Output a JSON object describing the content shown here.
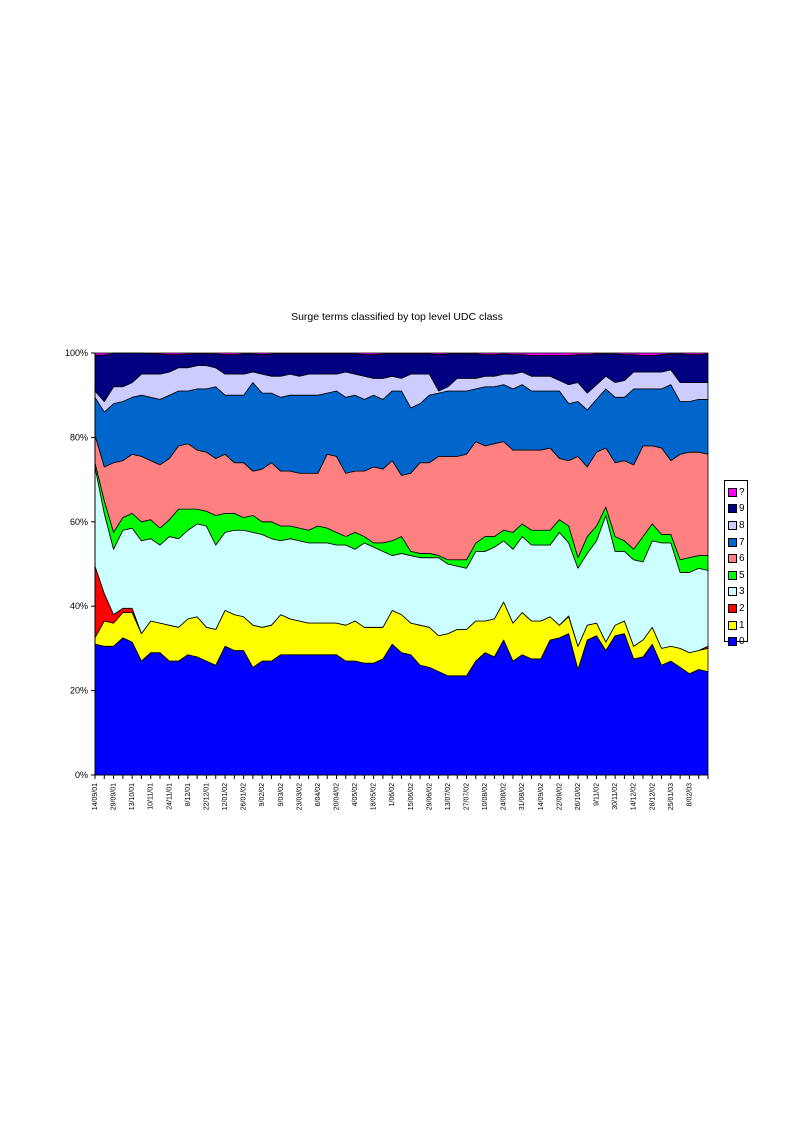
{
  "chart_data": {
    "type": "area",
    "stacked": "percent",
    "title": "Surge terms classified by top level UDC class",
    "xlabel": "",
    "ylabel": "",
    "ylim": [
      0,
      100
    ],
    "yticks": [
      "0%",
      "20%",
      "40%",
      "60%",
      "80%",
      "100%"
    ],
    "legend_position": "right",
    "x_tick_labels": [
      "14/09/01",
      "29/09/01",
      "13/10/01",
      "10/11/01",
      "24/11/01",
      "8/12/01",
      "22/12/01",
      "12/01/02",
      "26/01/02",
      "9/02/02",
      "9/03/02",
      "23/03/02",
      "6/04/02",
      "20/04/02",
      "4/05/02",
      "18/05/02",
      "1/06/02",
      "15/06/02",
      "29/06/02",
      "13/07/02",
      "27/07/02",
      "10/08/02",
      "24/08/02",
      "31/08/02",
      "14/09/02",
      "22/09/02",
      "26/10/02",
      "9/11/02",
      "30/11/02",
      "14/12/02",
      "28/12/02",
      "25/01/03",
      "8/02/03"
    ],
    "n_points": 67,
    "series_order_bottom_to_top": [
      "0",
      "1",
      "2",
      "3",
      "5",
      "6",
      "7",
      "8",
      "9",
      "?"
    ],
    "colors": {
      "0": "#0000ff",
      "1": "#ffff00",
      "2": "#ff0000",
      "3": "#ccffff",
      "5": "#00ff00",
      "6": "#ff8080",
      "7": "#0066cc",
      "8": "#ccccff",
      "9": "#000080",
      "?": "#ff00ff"
    },
    "cumulative": {
      "0": [
        31,
        30.5,
        30.5,
        32.5,
        31.5,
        27,
        29,
        29,
        27,
        27,
        28.5,
        28,
        27,
        26,
        30.5,
        29.5,
        29.5,
        25.5,
        27,
        27,
        28.5,
        28.5,
        28.5,
        28.5,
        28.5,
        28.5,
        28.5,
        27,
        27,
        26.5,
        26.5,
        27.5,
        31,
        29,
        28.5,
        26,
        25.5,
        24.5,
        23.5,
        23.5,
        23.5,
        27,
        29,
        28,
        32,
        27,
        28.5,
        27.5,
        27.5,
        32,
        32.5,
        33.5,
        25,
        32,
        33,
        29.5,
        33,
        33.5,
        27.5,
        28,
        31,
        26,
        27,
        25.5,
        24,
        25,
        24.5
      ],
      "1": [
        32.5,
        36.5,
        36,
        38.5,
        38.5,
        33.5,
        36.5,
        36,
        35.5,
        35,
        37,
        37.5,
        35,
        34.5,
        39,
        38,
        37.5,
        35.5,
        35,
        35.5,
        38,
        37,
        36.5,
        36,
        36,
        36,
        36,
        35.5,
        36.5,
        35,
        35,
        35,
        39,
        38,
        36,
        35.5,
        35,
        33,
        33.5,
        34.5,
        34.5,
        36.5,
        36.5,
        37,
        41,
        36,
        38.5,
        36.5,
        36.5,
        37.5,
        35.5,
        37.5,
        30.5,
        35.5,
        36,
        31.5,
        35.5,
        36.5,
        30.5,
        32,
        35,
        30,
        30.5,
        30,
        29,
        29.5,
        30
      ],
      "2": [
        49.5,
        43,
        38,
        39.5,
        39.5,
        33.5,
        36.5,
        36,
        35.5,
        35,
        37,
        37.5,
        35,
        34.5,
        39,
        38,
        37.5,
        35.5,
        35,
        35.5,
        38,
        37,
        36.5,
        36,
        36,
        36,
        36,
        35.5,
        36.5,
        35,
        35,
        35,
        39,
        38,
        36,
        35.5,
        35,
        33,
        33.5,
        34.5,
        34.5,
        36.5,
        36.5,
        37,
        41,
        36,
        38.5,
        36.5,
        36.5,
        37.5,
        35.5,
        37.7,
        30.5,
        35.5,
        36,
        31.5,
        35.5,
        36.5,
        30.5,
        32,
        35,
        30,
        30.5,
        30,
        29,
        29.5,
        30.5
      ],
      "3": [
        73,
        62,
        53.5,
        58,
        58.5,
        55.5,
        56,
        54.5,
        56.5,
        56,
        58,
        59.5,
        59,
        54.5,
        57.5,
        58,
        58,
        57.5,
        57,
        56,
        55.5,
        56,
        55.5,
        55,
        55,
        55,
        54.5,
        54.5,
        53.5,
        55,
        54,
        53,
        52,
        52.5,
        52,
        51.5,
        51.5,
        51.5,
        50,
        49.5,
        49,
        53,
        53,
        54,
        55.5,
        53.5,
        56.5,
        54.5,
        54.5,
        54.5,
        57.5,
        55,
        49,
        52.5,
        55.5,
        61.5,
        53,
        53,
        51,
        50.5,
        55.5,
        55,
        55,
        48,
        48,
        49,
        48.5
      ],
      "5": [
        74,
        65,
        57.5,
        61,
        62,
        60,
        60.5,
        58.5,
        60.5,
        63,
        63,
        63,
        62.5,
        61.5,
        62,
        62,
        61,
        61.5,
        60,
        60,
        59,
        59,
        58.5,
        58,
        59,
        58.5,
        57.5,
        56.5,
        57.5,
        56.5,
        55,
        55,
        55.5,
        56.5,
        53,
        52.5,
        52.5,
        52,
        51,
        51,
        51,
        55,
        56.5,
        56.5,
        58,
        57.5,
        59.5,
        58,
        58,
        58,
        60.5,
        59,
        51.5,
        56.5,
        59,
        63.5,
        56.5,
        55.5,
        53.5,
        56.5,
        59.5,
        57,
        57,
        51,
        51.5,
        52,
        52
      ],
      "6": [
        80.5,
        73,
        74,
        74.5,
        76,
        75.5,
        74.5,
        73.5,
        75,
        78,
        78.5,
        77,
        76.5,
        75,
        76,
        74,
        74,
        72,
        72.5,
        74,
        72,
        72,
        71.5,
        71.5,
        71.5,
        76,
        75.5,
        71.5,
        72,
        72,
        73,
        72.5,
        74.5,
        71,
        71.5,
        74,
        74,
        75.5,
        75.5,
        75.5,
        76,
        79,
        78,
        78.5,
        79,
        77,
        77,
        77,
        77,
        77.5,
        75,
        74.5,
        75.5,
        73,
        76.5,
        77.5,
        74,
        74.5,
        73.5,
        78,
        78,
        77.5,
        74.5,
        76,
        76.5,
        76.5,
        76
      ],
      "7": [
        89.5,
        86,
        88,
        88.5,
        89.5,
        90,
        89.5,
        89,
        90,
        91,
        91,
        91.5,
        91.5,
        92,
        90,
        90,
        90,
        93,
        90.5,
        90.5,
        89.5,
        90,
        90,
        90,
        90,
        90.5,
        91,
        89.5,
        90,
        89,
        90,
        89,
        91,
        91,
        87,
        88,
        90,
        90.5,
        91,
        91,
        91,
        91.5,
        92,
        92,
        92.5,
        91.5,
        92.5,
        91,
        91,
        91,
        91,
        88,
        88.5,
        86.5,
        89,
        91.5,
        89.5,
        89.5,
        91.5,
        91.5,
        91.5,
        91.5,
        92.5,
        88.5,
        88.5,
        89,
        89
      ],
      "8": [
        91,
        88.5,
        92,
        92,
        93,
        95,
        95,
        95,
        95.5,
        96.5,
        96.5,
        97,
        97,
        96.5,
        95,
        95,
        95,
        95.5,
        95,
        94.5,
        94.5,
        95,
        94.5,
        95,
        95,
        95,
        95,
        95.5,
        95,
        94.5,
        94,
        94,
        94.5,
        94,
        95,
        95,
        95,
        91,
        92,
        94,
        94,
        94,
        94.5,
        94.5,
        95,
        95,
        95.5,
        94.5,
        94.5,
        94.5,
        93.5,
        92.5,
        93,
        90.5,
        92.5,
        94.5,
        93,
        93.5,
        95.5,
        95.5,
        95.5,
        95.5,
        96,
        93,
        93,
        93,
        93
      ],
      "9": [
        99.5,
        99.5,
        100,
        100,
        100,
        100,
        99.8,
        99.8,
        99.6,
        99.6,
        99.8,
        99.8,
        99.8,
        99.8,
        99.6,
        99.6,
        99.8,
        99.8,
        99.6,
        99.8,
        99.8,
        99.8,
        99.8,
        99.8,
        99.8,
        99.8,
        99.8,
        99.8,
        99.8,
        99.6,
        99.6,
        99.8,
        99.8,
        99.8,
        99.8,
        99.8,
        99.8,
        99.6,
        99.8,
        99.8,
        99.8,
        99.8,
        99.6,
        99.6,
        99.8,
        99.6,
        99.6,
        99.4,
        99.4,
        99.4,
        99.4,
        99.4,
        99.6,
        99.6,
        99.8,
        99.8,
        99.8,
        99.6,
        99.6,
        99.4,
        99.4,
        99.6,
        99.8,
        99.8,
        99.6,
        99.6,
        99.8
      ]
    }
  },
  "legend": {
    "items": [
      {
        "label": "?",
        "color": "#ff00ff"
      },
      {
        "label": "9",
        "color": "#000080"
      },
      {
        "label": "8",
        "color": "#ccccff"
      },
      {
        "label": "7",
        "color": "#0066cc"
      },
      {
        "label": "6",
        "color": "#ff8080"
      },
      {
        "label": "5",
        "color": "#00ff00"
      },
      {
        "label": "3",
        "color": "#ccffff"
      },
      {
        "label": "2",
        "color": "#ff0000"
      },
      {
        "label": "1",
        "color": "#ffff00"
      },
      {
        "label": "0",
        "color": "#0000ff"
      }
    ]
  }
}
